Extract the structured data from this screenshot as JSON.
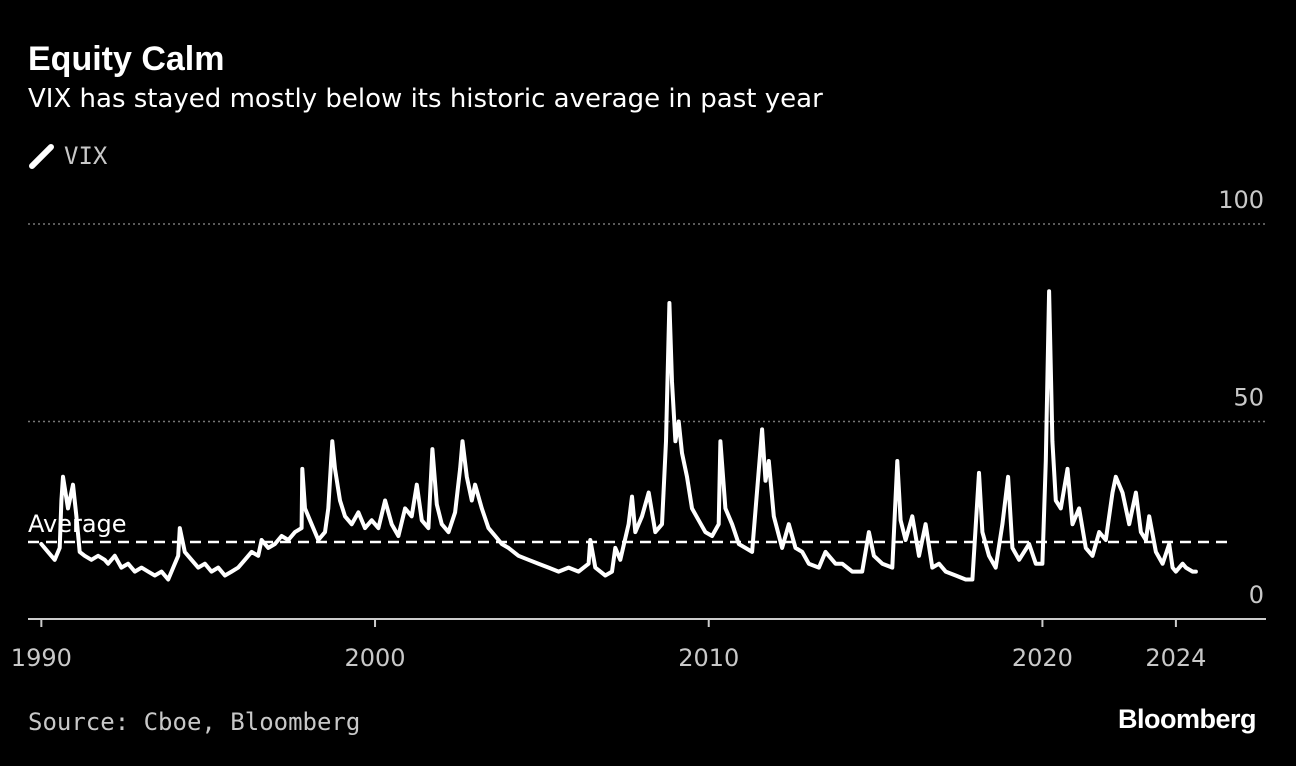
{
  "title": "Equity Calm",
  "subtitle": "VIX has stayed mostly below its historic average in past year",
  "legend": {
    "label": "VIX",
    "icon": "line-swatch-icon"
  },
  "source": "Source: Cboe, Bloomberg",
  "brand": "Bloomberg",
  "colors": {
    "background": "#000000",
    "line": "#ffffff",
    "grid": "#777777",
    "text": "#c8c8c8"
  },
  "chart_data": {
    "type": "line",
    "title": "Equity Calm",
    "subtitle": "VIX has stayed mostly below its historic average in past year",
    "y_axis": {
      "position": "right",
      "range": [
        0,
        100
      ],
      "ticks": [
        "0",
        "50",
        "100"
      ],
      "grid": "dotted"
    },
    "x_axis": {
      "range": [
        1989.6,
        2026.7
      ],
      "ticks": [
        {
          "x": 1990,
          "label": "1990"
        },
        {
          "x": 2000,
          "label": "2000"
        },
        {
          "x": 2010,
          "label": "2010"
        },
        {
          "x": 2020,
          "label": "2020"
        },
        {
          "x": 2024,
          "label": "2024"
        }
      ]
    },
    "average": {
      "label": "Average",
      "value": 19.5,
      "style": "dashed"
    },
    "series": [
      {
        "name": "VIX",
        "points": [
          [
            1990.0,
            19
          ],
          [
            1990.2,
            17
          ],
          [
            1990.4,
            15
          ],
          [
            1990.55,
            18
          ],
          [
            1990.6,
            30
          ],
          [
            1990.65,
            36
          ],
          [
            1990.8,
            28
          ],
          [
            1990.95,
            34
          ],
          [
            1991.05,
            26
          ],
          [
            1991.15,
            17
          ],
          [
            1991.3,
            16
          ],
          [
            1991.5,
            15
          ],
          [
            1991.7,
            16
          ],
          [
            1991.9,
            15
          ],
          [
            1992.0,
            14
          ],
          [
            1992.2,
            16
          ],
          [
            1992.4,
            13
          ],
          [
            1992.6,
            14
          ],
          [
            1992.8,
            12
          ],
          [
            1993.0,
            13
          ],
          [
            1993.2,
            12
          ],
          [
            1993.4,
            11
          ],
          [
            1993.6,
            12
          ],
          [
            1993.8,
            10
          ],
          [
            1993.95,
            13
          ],
          [
            1994.1,
            16
          ],
          [
            1994.15,
            23
          ],
          [
            1994.3,
            17
          ],
          [
            1994.5,
            15
          ],
          [
            1994.7,
            13
          ],
          [
            1994.9,
            14
          ],
          [
            1995.1,
            12
          ],
          [
            1995.3,
            13
          ],
          [
            1995.5,
            11
          ],
          [
            1995.7,
            12
          ],
          [
            1995.9,
            13
          ],
          [
            1996.1,
            15
          ],
          [
            1996.3,
            17
          ],
          [
            1996.5,
            16
          ],
          [
            1996.6,
            20
          ],
          [
            1996.8,
            18
          ],
          [
            1997.0,
            19
          ],
          [
            1997.2,
            21
          ],
          [
            1997.4,
            20
          ],
          [
            1997.6,
            22
          ],
          [
            1997.8,
            23
          ],
          [
            1997.82,
            38
          ],
          [
            1997.9,
            28
          ],
          [
            1998.1,
            24
          ],
          [
            1998.3,
            20
          ],
          [
            1998.5,
            22
          ],
          [
            1998.6,
            28
          ],
          [
            1998.72,
            45
          ],
          [
            1998.8,
            38
          ],
          [
            1998.95,
            30
          ],
          [
            1999.1,
            26
          ],
          [
            1999.3,
            24
          ],
          [
            1999.5,
            27
          ],
          [
            1999.7,
            23
          ],
          [
            1999.9,
            25
          ],
          [
            2000.1,
            23
          ],
          [
            2000.3,
            30
          ],
          [
            2000.5,
            24
          ],
          [
            2000.7,
            21
          ],
          [
            2000.9,
            28
          ],
          [
            2001.1,
            26
          ],
          [
            2001.25,
            34
          ],
          [
            2001.4,
            25
          ],
          [
            2001.6,
            23
          ],
          [
            2001.72,
            43
          ],
          [
            2001.85,
            29
          ],
          [
            2002.0,
            24
          ],
          [
            2002.2,
            22
          ],
          [
            2002.4,
            27
          ],
          [
            2002.55,
            38
          ],
          [
            2002.62,
            45
          ],
          [
            2002.75,
            36
          ],
          [
            2002.9,
            30
          ],
          [
            2003.0,
            34
          ],
          [
            2003.2,
            28
          ],
          [
            2003.4,
            23
          ],
          [
            2003.6,
            21
          ],
          [
            2003.8,
            19
          ],
          [
            2004.0,
            18
          ],
          [
            2004.3,
            16
          ],
          [
            2004.6,
            15
          ],
          [
            2004.9,
            14
          ],
          [
            2005.2,
            13
          ],
          [
            2005.5,
            12
          ],
          [
            2005.8,
            13
          ],
          [
            2006.1,
            12
          ],
          [
            2006.4,
            14
          ],
          [
            2006.45,
            20
          ],
          [
            2006.6,
            13
          ],
          [
            2006.9,
            11
          ],
          [
            2007.1,
            12
          ],
          [
            2007.2,
            18
          ],
          [
            2007.35,
            15
          ],
          [
            2007.6,
            24
          ],
          [
            2007.7,
            31
          ],
          [
            2007.8,
            22
          ],
          [
            2008.0,
            26
          ],
          [
            2008.2,
            32
          ],
          [
            2008.4,
            22
          ],
          [
            2008.6,
            24
          ],
          [
            2008.72,
            45
          ],
          [
            2008.82,
            80
          ],
          [
            2008.9,
            60
          ],
          [
            2009.0,
            45
          ],
          [
            2009.1,
            50
          ],
          [
            2009.2,
            42
          ],
          [
            2009.35,
            36
          ],
          [
            2009.5,
            28
          ],
          [
            2009.7,
            25
          ],
          [
            2009.9,
            22
          ],
          [
            2010.1,
            21
          ],
          [
            2010.3,
            24
          ],
          [
            2010.35,
            45
          ],
          [
            2010.5,
            28
          ],
          [
            2010.7,
            24
          ],
          [
            2010.9,
            19
          ],
          [
            2011.1,
            18
          ],
          [
            2011.3,
            17
          ],
          [
            2011.6,
            48
          ],
          [
            2011.7,
            35
          ],
          [
            2011.8,
            40
          ],
          [
            2011.95,
            26
          ],
          [
            2012.2,
            18
          ],
          [
            2012.4,
            24
          ],
          [
            2012.6,
            18
          ],
          [
            2012.8,
            17
          ],
          [
            2013.0,
            14
          ],
          [
            2013.3,
            13
          ],
          [
            2013.5,
            17
          ],
          [
            2013.8,
            14
          ],
          [
            2014.0,
            14
          ],
          [
            2014.3,
            12
          ],
          [
            2014.6,
            12
          ],
          [
            2014.8,
            22
          ],
          [
            2014.95,
            16
          ],
          [
            2015.2,
            14
          ],
          [
            2015.5,
            13
          ],
          [
            2015.65,
            40
          ],
          [
            2015.75,
            25
          ],
          [
            2015.9,
            20
          ],
          [
            2016.1,
            26
          ],
          [
            2016.3,
            16
          ],
          [
            2016.5,
            24
          ],
          [
            2016.7,
            13
          ],
          [
            2016.9,
            14
          ],
          [
            2017.1,
            12
          ],
          [
            2017.4,
            11
          ],
          [
            2017.7,
            10
          ],
          [
            2017.9,
            10
          ],
          [
            2018.1,
            37
          ],
          [
            2018.2,
            22
          ],
          [
            2018.4,
            16
          ],
          [
            2018.6,
            13
          ],
          [
            2018.8,
            24
          ],
          [
            2018.97,
            36
          ],
          [
            2019.1,
            18
          ],
          [
            2019.3,
            15
          ],
          [
            2019.6,
            19
          ],
          [
            2019.8,
            14
          ],
          [
            2020.0,
            14
          ],
          [
            2020.1,
            40
          ],
          [
            2020.2,
            83
          ],
          [
            2020.3,
            45
          ],
          [
            2020.4,
            30
          ],
          [
            2020.55,
            28
          ],
          [
            2020.75,
            38
          ],
          [
            2020.9,
            24
          ],
          [
            2021.1,
            28
          ],
          [
            2021.3,
            18
          ],
          [
            2021.5,
            16
          ],
          [
            2021.7,
            22
          ],
          [
            2021.9,
            20
          ],
          [
            2022.1,
            32
          ],
          [
            2022.2,
            36
          ],
          [
            2022.4,
            32
          ],
          [
            2022.6,
            24
          ],
          [
            2022.8,
            32
          ],
          [
            2022.95,
            22
          ],
          [
            2023.1,
            20
          ],
          [
            2023.2,
            26
          ],
          [
            2023.4,
            17
          ],
          [
            2023.6,
            14
          ],
          [
            2023.8,
            19
          ],
          [
            2023.9,
            13
          ],
          [
            2024.0,
            12
          ],
          [
            2024.2,
            14
          ],
          [
            2024.3,
            13
          ],
          [
            2024.5,
            12
          ],
          [
            2024.6,
            12
          ]
        ]
      }
    ]
  }
}
